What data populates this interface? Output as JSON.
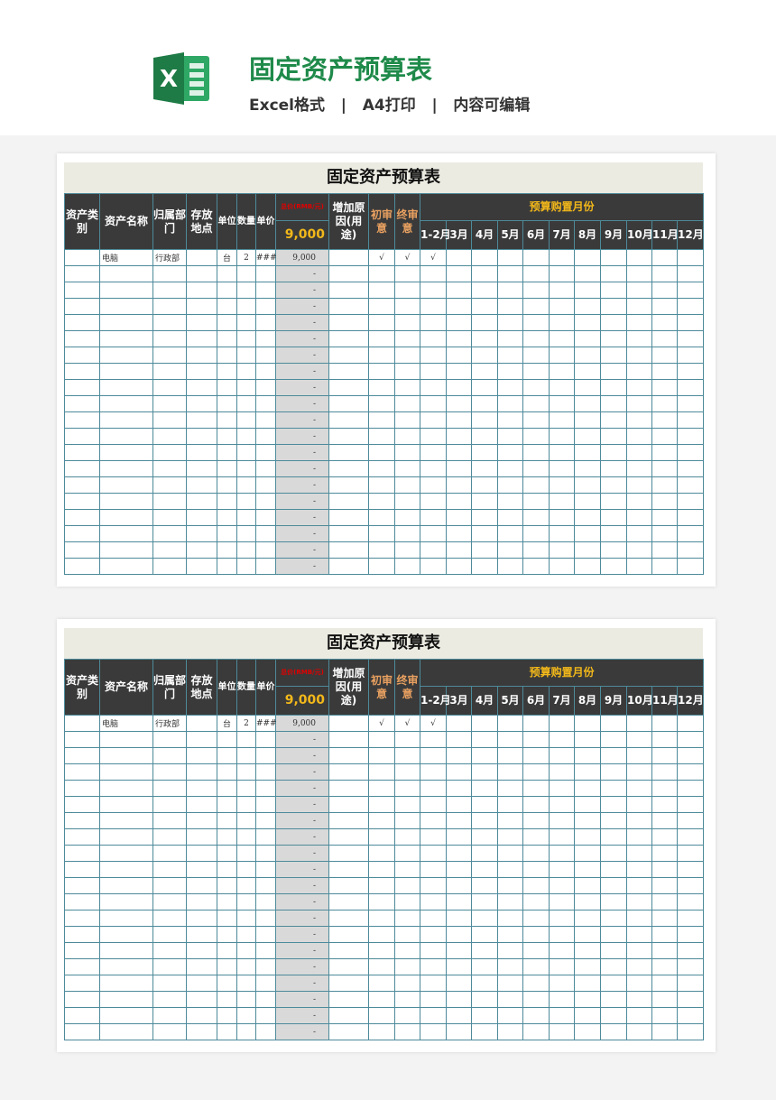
{
  "header": {
    "title": "固定资产预算表",
    "subtitle": "Excel格式   |   A4打印   |   内容可编辑",
    "logo_text": "X",
    "accent": "#1f8a4a"
  },
  "sheet": {
    "title": "固定资产预算表",
    "columns": {
      "category": "资产类别",
      "name": "资产名称",
      "dept": "归属部门",
      "location": "存放地点",
      "unit": "单位",
      "qty": "数量",
      "price": "单价",
      "total_label": "总价(RMB/元)",
      "total_value": "9,000",
      "reason": "增加原因(用途)",
      "first_review": "初审意",
      "final_review": "终审意",
      "months_group": "预算购置月份"
    },
    "months": [
      "1-2月",
      "3月",
      "4月",
      "5月",
      "6月",
      "7月",
      "8月",
      "9月",
      "10月",
      "11月",
      "12月"
    ],
    "first_row": {
      "category": "",
      "name": "电脑",
      "dept": "行政部",
      "location": "",
      "unit": "台",
      "qty": "2",
      "price": "###",
      "total": "9,000",
      "reason": "",
      "first": "√",
      "final": "√",
      "m1": "√"
    },
    "empty_total": "-",
    "empty_rows": 19
  }
}
